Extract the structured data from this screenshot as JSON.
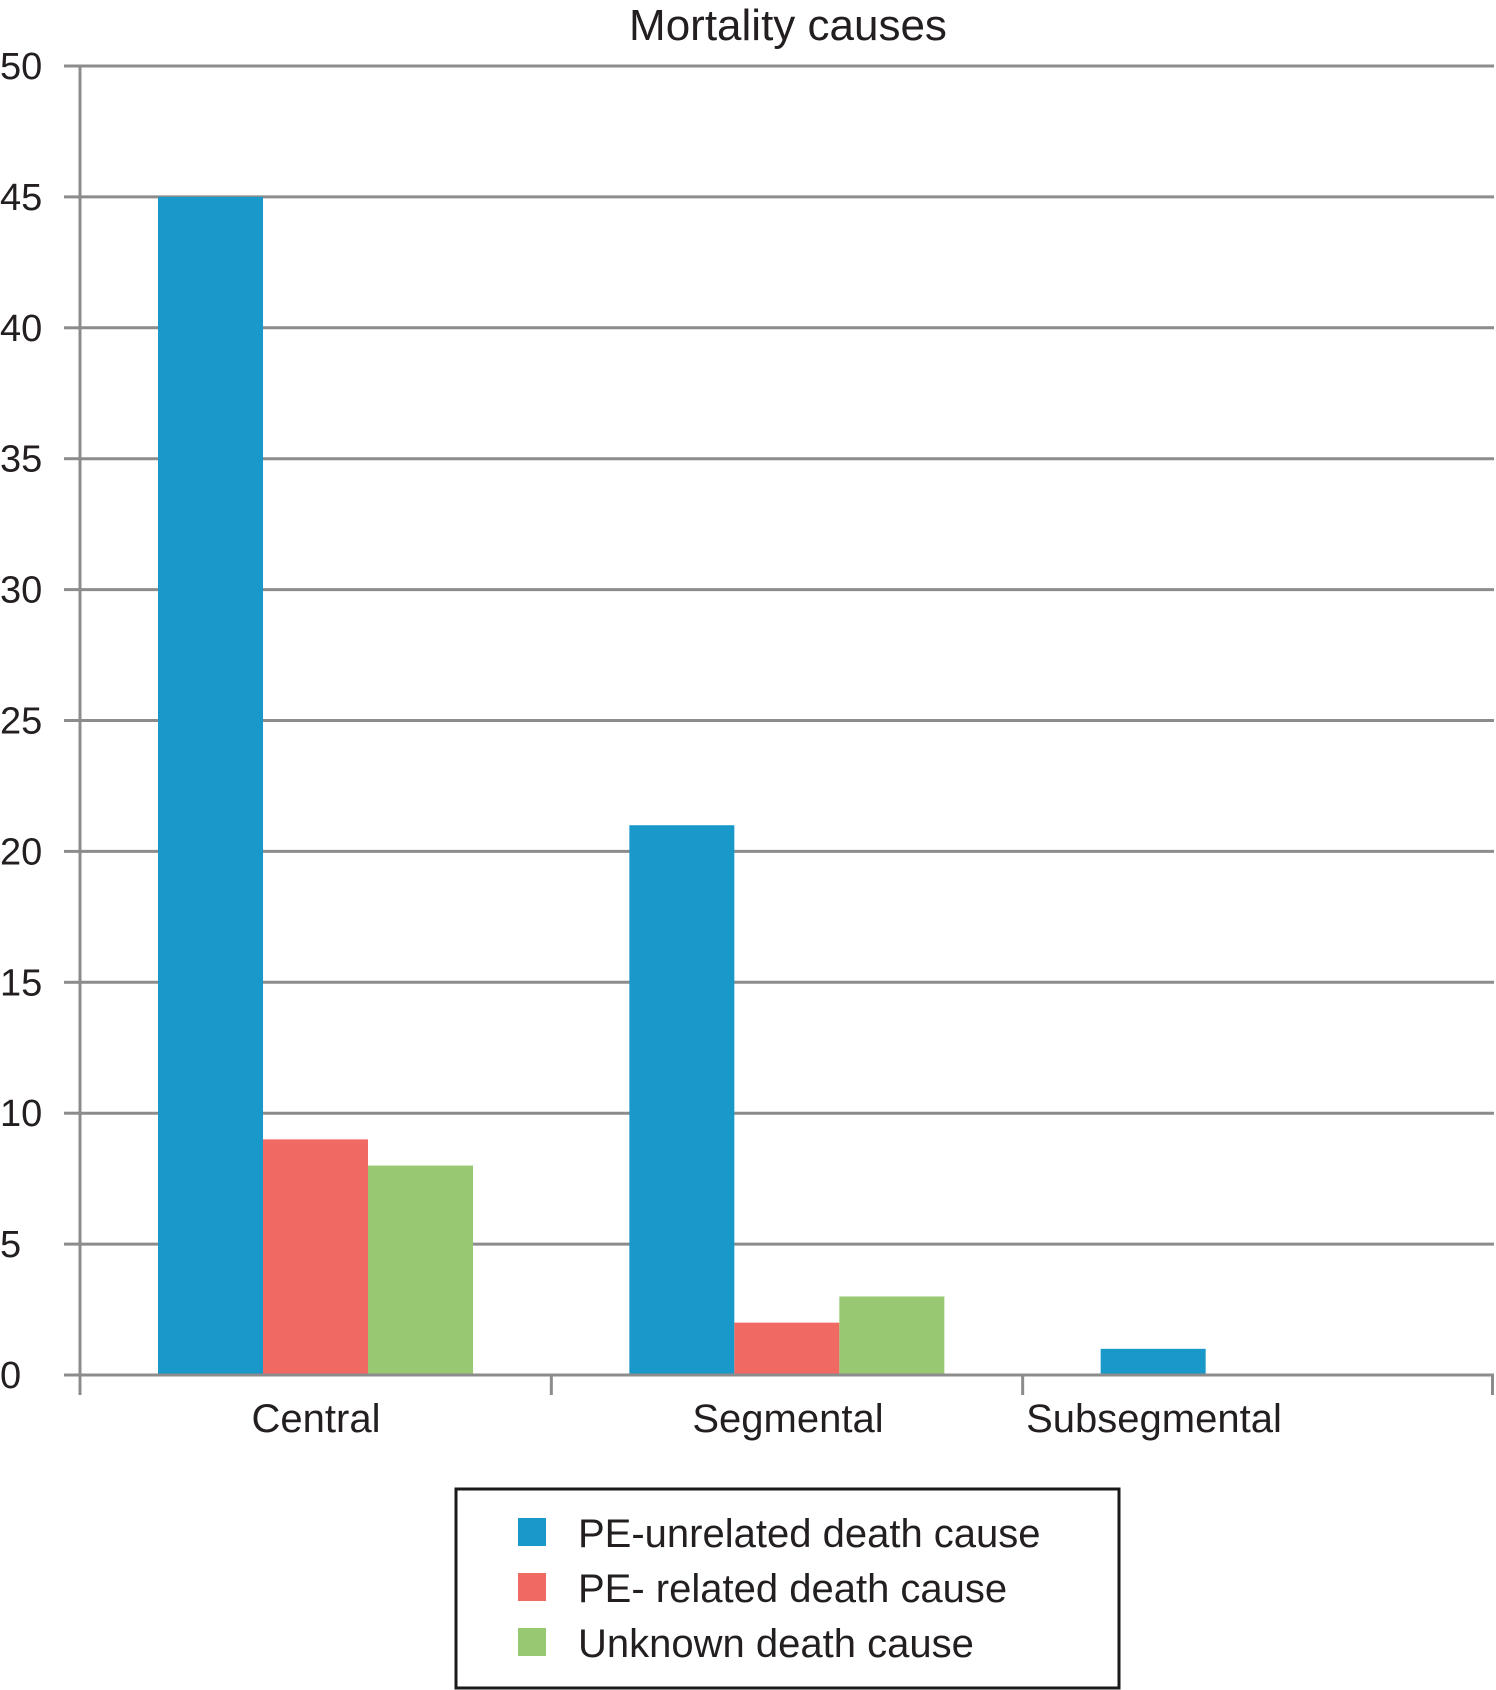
{
  "chart_data": {
    "type": "bar",
    "title": "Mortality causes",
    "xlabel": "",
    "ylabel": "",
    "categories": [
      "Central",
      "Segmental",
      "Subsegmental"
    ],
    "series": [
      {
        "name": "PE-unrelated death cause",
        "values": [
          45,
          21,
          1
        ],
        "color": "#1899c9"
      },
      {
        "name": "PE- related death cause",
        "values": [
          9,
          2,
          0
        ],
        "color": "#f06962"
      },
      {
        "name": "Unknown death cause",
        "values": [
          8,
          3,
          0
        ],
        "color": "#99c872"
      }
    ],
    "ylim": [
      0,
      50
    ],
    "yticks": [
      0,
      5,
      10,
      15,
      20,
      25,
      30,
      35,
      40,
      45,
      50
    ],
    "grid": true,
    "legend_position": "bottom"
  },
  "colors": {
    "gridline": "#8c8c8c",
    "axis": "#8c8c8c",
    "text": "#231f20",
    "legend_border": "#1a1a1a"
  }
}
